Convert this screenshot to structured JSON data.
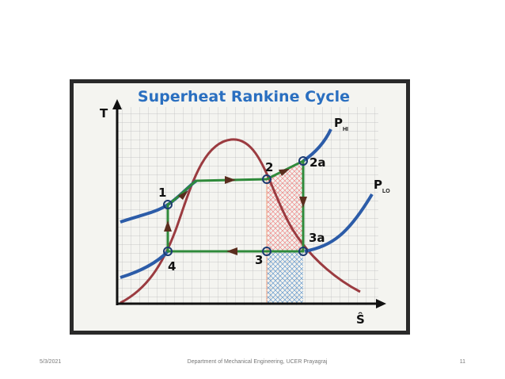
{
  "diagram": {
    "title": "Superheat Rankine Cycle",
    "axes": {
      "y": "T",
      "x": "Ŝ"
    },
    "pressures": [
      {
        "symbol": "P",
        "subscript": "HI"
      },
      {
        "symbol": "P",
        "subscript": "LO"
      }
    ],
    "points": [
      "1",
      "2",
      "2a",
      "3",
      "3a",
      "4"
    ]
  },
  "footer": {
    "date": "5/3/2021",
    "department": "Department of Mechanical Engineering, UCER Prayagraj",
    "page": "11"
  }
}
